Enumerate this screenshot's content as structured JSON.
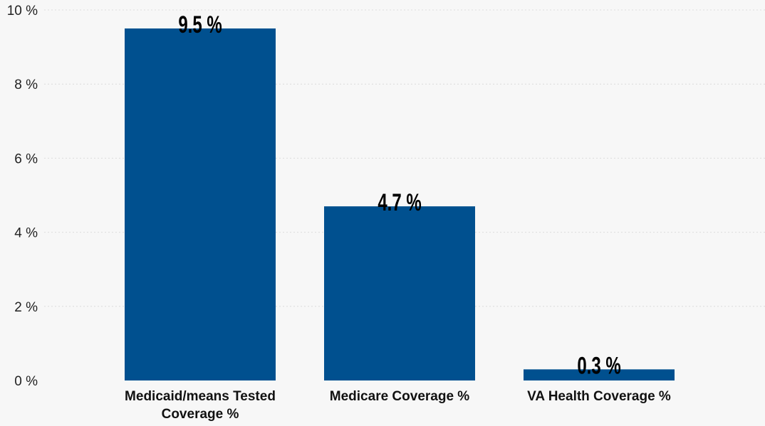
{
  "chart_data": {
    "type": "bar",
    "title": "",
    "xlabel": "",
    "ylabel": "",
    "categories": [
      "Medicaid/means Tested Coverage %",
      "Medicare Coverage %",
      "VA Health Coverage %"
    ],
    "category_lines": [
      [
        "Medicaid/means Tested",
        "Coverage %"
      ],
      [
        "Medicare Coverage %"
      ],
      [
        "VA Health Coverage %"
      ]
    ],
    "values": [
      9.5,
      4.7,
      0.3
    ],
    "data_labels": [
      "9.5 %",
      "4.7 %",
      "0.3 %"
    ],
    "ylim": [
      0,
      10
    ],
    "yticks": [
      0,
      2,
      4,
      6,
      8,
      10
    ],
    "ytick_labels": [
      "0 %",
      "2 %",
      "4 %",
      "6 %",
      "8 %",
      "10 %"
    ],
    "grid": true,
    "legend": "none",
    "bar_color": "#00508f",
    "background": "#f7f7f7"
  }
}
